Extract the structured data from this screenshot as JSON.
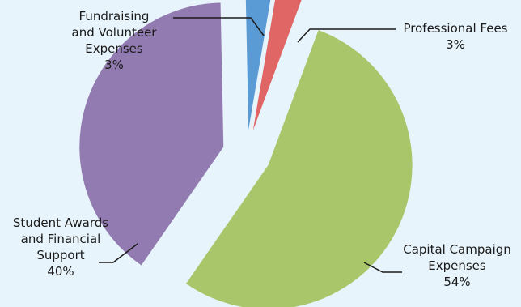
{
  "chart_data": {
    "type": "pie",
    "title": "",
    "slices": [
      {
        "label_lines": [
          "Fundraising",
          "and Volunteer",
          "Expenses"
        ],
        "percent_label": "3%",
        "value": 3,
        "color": "#5b9bd5"
      },
      {
        "label_lines": [
          "Professional Fees"
        ],
        "percent_label": "3%",
        "value": 3,
        "color": "#e06666"
      },
      {
        "label_lines": [
          "Capital Campaign",
          "Expenses"
        ],
        "percent_label": "54%",
        "value": 54,
        "color": "#a9c66b"
      },
      {
        "label_lines": [
          "Student Awards",
          "and Financial",
          "Support"
        ],
        "percent_label": "40%",
        "value": 40,
        "color": "#927bb0"
      }
    ],
    "legend": "none",
    "exploded": true
  },
  "colors": {
    "background": "#e8f4fb",
    "leader_line": "#1a1a1a"
  }
}
